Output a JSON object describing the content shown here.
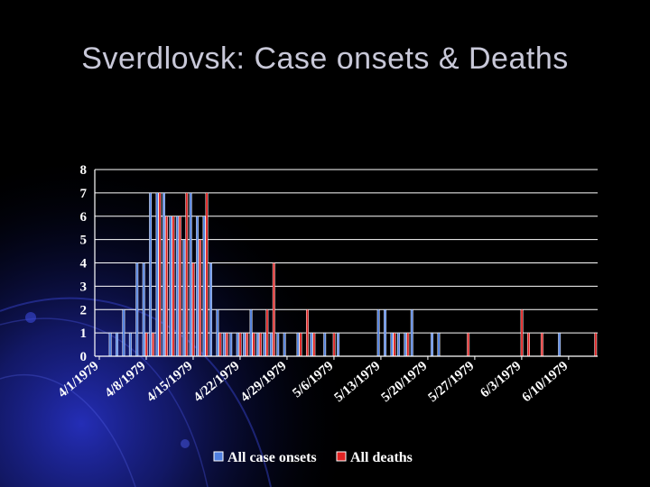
{
  "slide": {
    "title": "Sverdlovsk: Case onsets & Deaths"
  },
  "colors": {
    "onsets": "#4f7fe0",
    "deaths": "#e02222",
    "grid": "#ffffff",
    "text": "#ffffff",
    "background": "#000000"
  },
  "chart_data": {
    "type": "bar",
    "title": "",
    "xlabel": "",
    "ylabel": "",
    "ylim": [
      0,
      8
    ],
    "yticks": [
      "0",
      "1",
      "2",
      "3",
      "4",
      "5",
      "6",
      "7",
      "8"
    ],
    "x_start_date": "1979-04-02",
    "x_end_date": "1979-06-15",
    "x_tick_labels": [
      "4/1/1979",
      "4/8/1979",
      "4/15/1979",
      "4/22/1979",
      "4/29/1979",
      "5/6/1979",
      "5/13/1979",
      "5/20/1979",
      "5/27/1979",
      "6/3/1979",
      "6/10/1979"
    ],
    "grid": true,
    "legend_position": "bottom",
    "series": [
      {
        "name": "All case onsets",
        "points": [
          {
            "x": "1979-04-04",
            "y": 1
          },
          {
            "x": "1979-04-05",
            "y": 1
          },
          {
            "x": "1979-04-06",
            "y": 2
          },
          {
            "x": "1979-04-07",
            "y": 1
          },
          {
            "x": "1979-04-08",
            "y": 4
          },
          {
            "x": "1979-04-09",
            "y": 4
          },
          {
            "x": "1979-04-10",
            "y": 7
          },
          {
            "x": "1979-04-11",
            "y": 7
          },
          {
            "x": "1979-04-12",
            "y": 7
          },
          {
            "x": "1979-04-13",
            "y": 6
          },
          {
            "x": "1979-04-14",
            "y": 6
          },
          {
            "x": "1979-04-15",
            "y": 5
          },
          {
            "x": "1979-04-16",
            "y": 7
          },
          {
            "x": "1979-04-17",
            "y": 6
          },
          {
            "x": "1979-04-18",
            "y": 6
          },
          {
            "x": "1979-04-19",
            "y": 4
          },
          {
            "x": "1979-04-20",
            "y": 2
          },
          {
            "x": "1979-04-21",
            "y": 1
          },
          {
            "x": "1979-04-22",
            "y": 1
          },
          {
            "x": "1979-04-23",
            "y": 1
          },
          {
            "x": "1979-04-24",
            "y": 1
          },
          {
            "x": "1979-04-25",
            "y": 2
          },
          {
            "x": "1979-04-26",
            "y": 1
          },
          {
            "x": "1979-04-27",
            "y": 1
          },
          {
            "x": "1979-04-28",
            "y": 1
          },
          {
            "x": "1979-04-29",
            "y": 1
          },
          {
            "x": "1979-04-30",
            "y": 1
          },
          {
            "x": "1979-05-02",
            "y": 1
          },
          {
            "x": "1979-05-04",
            "y": 1
          },
          {
            "x": "1979-05-06",
            "y": 1
          },
          {
            "x": "1979-05-08",
            "y": 1
          },
          {
            "x": "1979-05-14",
            "y": 2
          },
          {
            "x": "1979-05-15",
            "y": 2
          },
          {
            "x": "1979-05-16",
            "y": 1
          },
          {
            "x": "1979-05-17",
            "y": 1
          },
          {
            "x": "1979-05-18",
            "y": 1
          },
          {
            "x": "1979-05-19",
            "y": 2
          },
          {
            "x": "1979-05-22",
            "y": 1
          },
          {
            "x": "1979-05-23",
            "y": 1
          },
          {
            "x": "1979-06-10",
            "y": 1
          }
        ]
      },
      {
        "name": "All deaths",
        "points": [
          {
            "x": "1979-04-09",
            "y": 1
          },
          {
            "x": "1979-04-10",
            "y": 1
          },
          {
            "x": "1979-04-11",
            "y": 7
          },
          {
            "x": "1979-04-12",
            "y": 6
          },
          {
            "x": "1979-04-13",
            "y": 6
          },
          {
            "x": "1979-04-14",
            "y": 6
          },
          {
            "x": "1979-04-15",
            "y": 7
          },
          {
            "x": "1979-04-16",
            "y": 4
          },
          {
            "x": "1979-04-17",
            "y": 5
          },
          {
            "x": "1979-04-18",
            "y": 7
          },
          {
            "x": "1979-04-20",
            "y": 1
          },
          {
            "x": "1979-04-21",
            "y": 1
          },
          {
            "x": "1979-04-23",
            "y": 1
          },
          {
            "x": "1979-04-24",
            "y": 1
          },
          {
            "x": "1979-04-25",
            "y": 1
          },
          {
            "x": "1979-04-26",
            "y": 1
          },
          {
            "x": "1979-04-27",
            "y": 2
          },
          {
            "x": "1979-04-28",
            "y": 4
          },
          {
            "x": "1979-05-02",
            "y": 1
          },
          {
            "x": "1979-05-03",
            "y": 2
          },
          {
            "x": "1979-05-04",
            "y": 1
          },
          {
            "x": "1979-05-07",
            "y": 1
          },
          {
            "x": "1979-05-16",
            "y": 1
          },
          {
            "x": "1979-05-18",
            "y": 1
          },
          {
            "x": "1979-05-27",
            "y": 1
          },
          {
            "x": "1979-06-04",
            "y": 2
          },
          {
            "x": "1979-06-05",
            "y": 1
          },
          {
            "x": "1979-06-07",
            "y": 1
          },
          {
            "x": "1979-06-15",
            "y": 1
          }
        ]
      }
    ]
  }
}
